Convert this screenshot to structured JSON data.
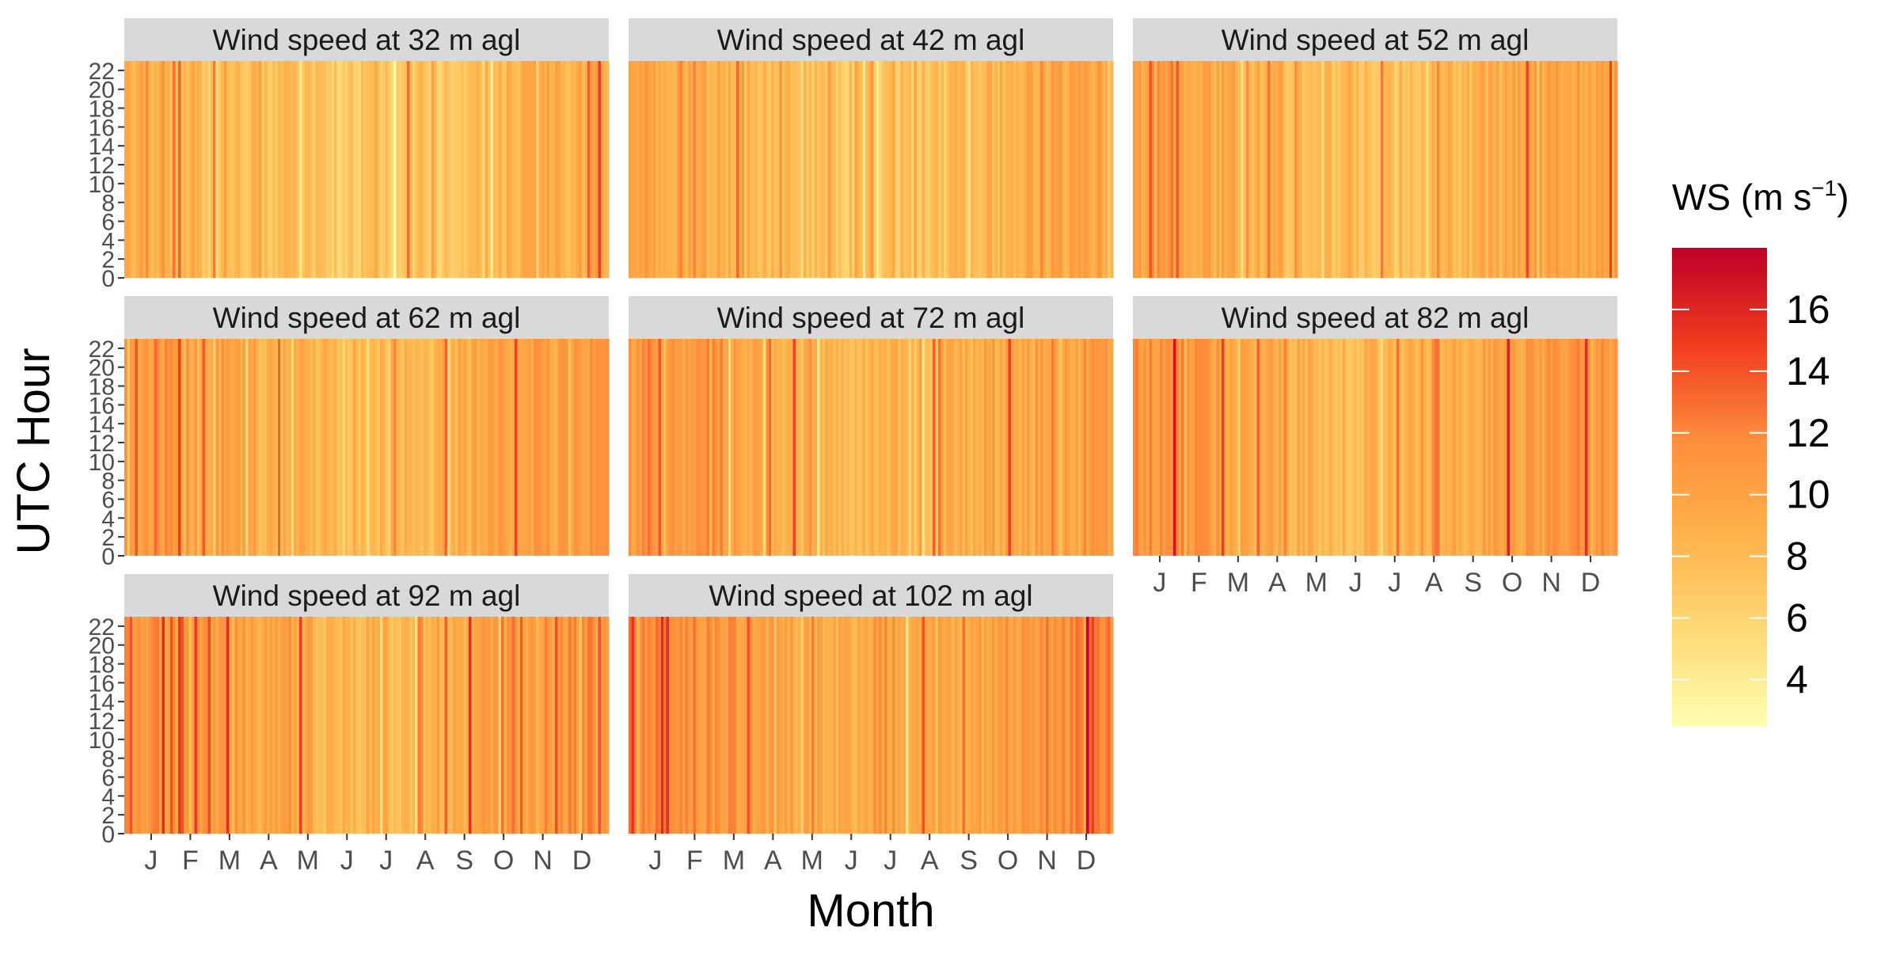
{
  "chart_data": {
    "type": "heatmap",
    "xlabel": "Month",
    "ylabel": "UTC Hour",
    "x_ticks": [
      "J",
      "F",
      "M",
      "A",
      "M",
      "J",
      "J",
      "A",
      "S",
      "O",
      "N",
      "D"
    ],
    "y_ticks": [
      0,
      2,
      4,
      6,
      8,
      10,
      12,
      14,
      16,
      18,
      20,
      22
    ],
    "y_range": [
      0,
      23
    ],
    "colorbar": {
      "title": "WS (m s",
      "title_sup": "−1",
      "title_close": ")",
      "range": [
        2.5,
        18
      ],
      "ticks": [
        4,
        6,
        8,
        10,
        12,
        14,
        16
      ],
      "colors": [
        "#ffffb2",
        "#fed976",
        "#feb24c",
        "#fd8d3c",
        "#f03b20",
        "#bd0026"
      ]
    },
    "panels": [
      {
        "title": "Wind speed at 32 m agl",
        "height_m": 32,
        "typical_ws": [
          5,
          11
        ]
      },
      {
        "title": "Wind speed at 42 m agl",
        "height_m": 42,
        "typical_ws": [
          5.5,
          11.5
        ]
      },
      {
        "title": "Wind speed at 52 m agl",
        "height_m": 52,
        "typical_ws": [
          6,
          12
        ]
      },
      {
        "title": "Wind speed at 62 m agl",
        "height_m": 62,
        "typical_ws": [
          6,
          13
        ]
      },
      {
        "title": "Wind speed at 72 m agl",
        "height_m": 72,
        "typical_ws": [
          6.5,
          12.5
        ]
      },
      {
        "title": "Wind speed at 82 m agl",
        "height_m": 82,
        "typical_ws": [
          6.5,
          13
        ]
      },
      {
        "title": "Wind speed at 92 m agl",
        "height_m": 92,
        "typical_ws": [
          7,
          13
        ]
      },
      {
        "title": "Wind speed at 102 m agl",
        "height_m": 102,
        "typical_ws": [
          7,
          14
        ]
      }
    ]
  }
}
